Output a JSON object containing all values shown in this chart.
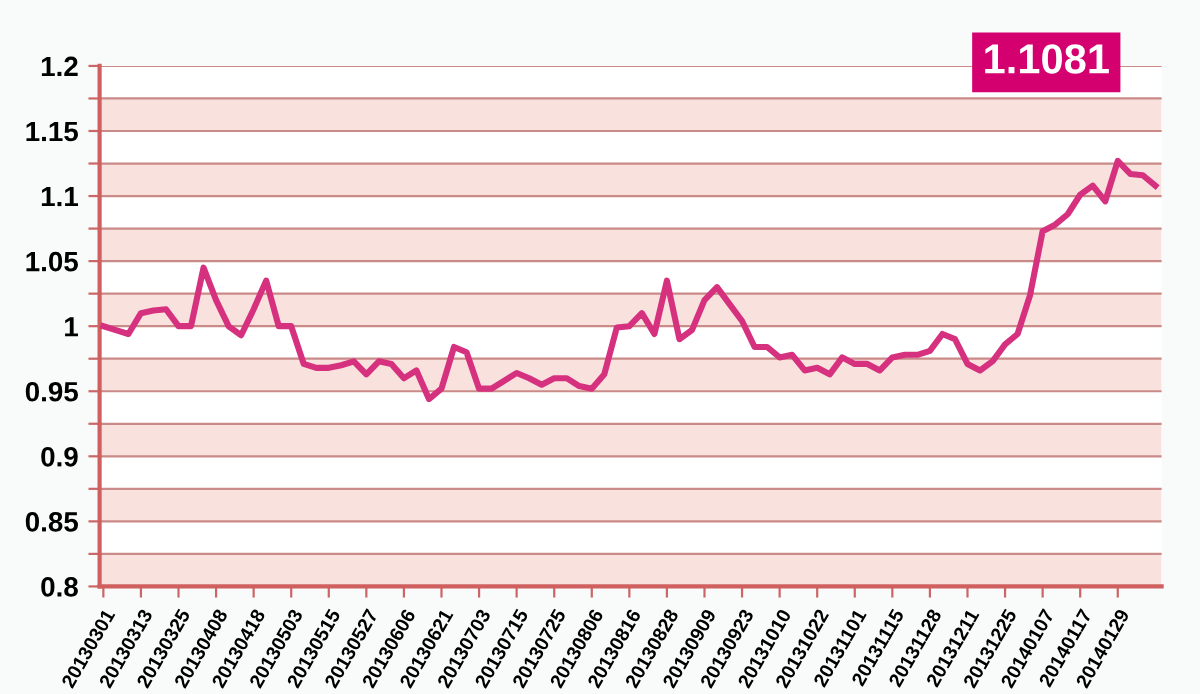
{
  "chart_data": {
    "type": "line",
    "categories": [
      "20130301",
      null,
      null,
      "20130313",
      null,
      null,
      "20130325",
      null,
      null,
      "20130408",
      null,
      null,
      "20130418",
      null,
      null,
      "20130503",
      null,
      null,
      "20130515",
      null,
      null,
      "20130527",
      null,
      null,
      "20130606",
      null,
      null,
      "20130621",
      null,
      null,
      "20130703",
      null,
      null,
      "20130715",
      null,
      null,
      "20130725",
      null,
      null,
      "20130806",
      null,
      null,
      "20130816",
      null,
      null,
      "20130828",
      null,
      null,
      "20130909",
      null,
      null,
      "20130923",
      null,
      null,
      "20131010",
      null,
      null,
      "20131022",
      null,
      null,
      "20131101",
      null,
      null,
      "20131115",
      null,
      null,
      "20131128",
      null,
      null,
      "20131211",
      null,
      null,
      "20131225",
      null,
      null,
      "20140107",
      null,
      null,
      "20140117",
      null,
      null,
      "20140129",
      null,
      null,
      null
    ],
    "series": [
      {
        "color": "#d6317f",
        "values": [
          1.0,
          0.997,
          0.994,
          1.01,
          1.012,
          1.013,
          1.0,
          1.0,
          1.045,
          1.02,
          1.0,
          0.993,
          1.013,
          1.035,
          1.0,
          1.0,
          0.971,
          0.968,
          0.968,
          0.97,
          0.973,
          0.963,
          0.973,
          0.971,
          0.96,
          0.966,
          0.944,
          0.952,
          0.984,
          0.98,
          0.952,
          0.952,
          0.958,
          0.964,
          0.96,
          0.955,
          0.96,
          0.96,
          0.954,
          0.952,
          0.963,
          0.999,
          1.0,
          1.01,
          0.994,
          1.035,
          0.99,
          0.997,
          1.02,
          1.03,
          1.017,
          1.004,
          0.984,
          0.984,
          0.976,
          0.978,
          0.966,
          0.968,
          0.963,
          0.976,
          0.971,
          0.971,
          0.966,
          0.976,
          0.978,
          0.978,
          0.981,
          0.994,
          0.99,
          0.971,
          0.966,
          0.973,
          0.986,
          0.994,
          1.024,
          1.073,
          1.078,
          1.086,
          1.101,
          1.108,
          1.096,
          1.127,
          1.117,
          1.116,
          1.108
        ]
      }
    ],
    "ylim": [
      0.8,
      1.2
    ],
    "yticks": [
      0.8,
      {
        "value": 0.825,
        "label": null
      },
      0.85,
      {
        "value": 0.875,
        "label": null
      },
      0.9,
      {
        "value": 0.925,
        "label": null
      },
      0.95,
      {
        "value": 0.975,
        "label": null
      },
      1,
      {
        "value": 1.025,
        "label": null
      },
      1.05,
      {
        "value": 1.075,
        "label": null
      },
      1.1,
      {
        "value": 1.125,
        "label": null
      },
      1.15,
      {
        "value": 1.175,
        "label": null
      },
      1.2
    ],
    "grid": "y",
    "bands": [
      {
        "axis": "y",
        "from": 0.8,
        "to": 0.825,
        "color": "#f9e1de"
      },
      {
        "axis": "y",
        "from": 0.85,
        "to": 0.875,
        "color": "#f9e1de"
      },
      {
        "axis": "y",
        "from": 0.9,
        "to": 0.925,
        "color": "#f9e1de"
      },
      {
        "axis": "y",
        "from": 0.95,
        "to": 0.975,
        "color": "#f9e1de"
      },
      {
        "axis": "y",
        "from": 1.0,
        "to": 1.025,
        "color": "#f9e1de"
      },
      {
        "axis": "y",
        "from": 1.05,
        "to": 1.075,
        "color": "#f9e1de"
      },
      {
        "axis": "y",
        "from": 1.1,
        "to": 1.125,
        "color": "#f9e1de"
      },
      {
        "axis": "y",
        "from": 1.15,
        "to": 1.175,
        "color": "#f9e1de"
      }
    ],
    "annotations": [
      "1.1081"
    ]
  }
}
